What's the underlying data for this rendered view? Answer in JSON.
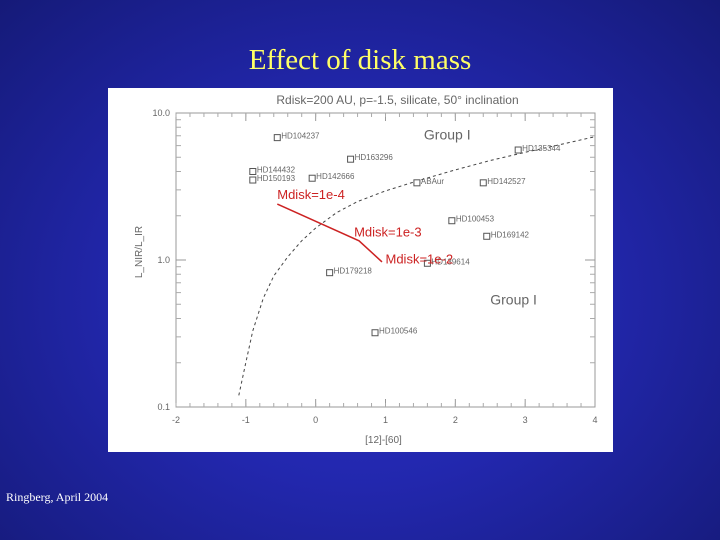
{
  "slide": {
    "title": "Effect of disk mass",
    "footer": "Ringberg, April 2004"
  },
  "chart_data": {
    "type": "scatter",
    "title": "Rdisk=200 AU, p=-1.5, silicate, 50° inclination",
    "xlabel": "[12]-[60]",
    "ylabel": "L_NIR/L_IR",
    "xlim": [
      -2,
      4
    ],
    "ylim": [
      0.1,
      10
    ],
    "yscale": "log",
    "x_tick_labels": [
      "-2",
      "-1",
      "0",
      "1",
      "2",
      "3",
      "4"
    ],
    "y_tick_labels": [
      "0.1",
      "1.0",
      "10.0"
    ],
    "stars": [
      {
        "name": "HD104237",
        "x": -0.55,
        "y": 6.8
      },
      {
        "name": "HD163296",
        "x": 0.5,
        "y": 4.85
      },
      {
        "name": "HD135344",
        "x": 2.9,
        "y": 5.6
      },
      {
        "name": "HD144432",
        "x": -0.9,
        "y": 4.0
      },
      {
        "name": "HD150193",
        "x": -0.9,
        "y": 3.5
      },
      {
        "name": "HD142666",
        "x": -0.05,
        "y": 3.6
      },
      {
        "name": "HD142527",
        "x": 2.4,
        "y": 3.35
      },
      {
        "name": "ABAur",
        "x": 1.45,
        "y": 3.35
      },
      {
        "name": "HD100453",
        "x": 1.95,
        "y": 1.85
      },
      {
        "name": "HD169142",
        "x": 2.45,
        "y": 1.45
      },
      {
        "name": "HD139614",
        "x": 1.6,
        "y": 0.95
      },
      {
        "name": "HD179218",
        "x": 0.2,
        "y": 0.82
      },
      {
        "name": "HD100546",
        "x": 0.85,
        "y": 0.32
      }
    ],
    "boundary_curve": {
      "label": "",
      "x": [
        -1.1,
        -1.0,
        -0.9,
        -0.75,
        -0.6,
        -0.4,
        -0.2,
        0.0,
        0.3,
        0.6,
        1.0,
        1.5,
        2.0,
        2.5,
        3.0,
        3.5,
        4.0
      ],
      "y": [
        0.12,
        0.2,
        0.33,
        0.55,
        0.78,
        1.05,
        1.35,
        1.65,
        2.1,
        2.5,
        2.95,
        3.5,
        4.1,
        4.75,
        5.4,
        6.1,
        6.9
      ]
    },
    "model_track": {
      "x": [
        -0.55,
        0.62,
        0.95
      ],
      "y": [
        2.4,
        1.35,
        0.97
      ]
    },
    "annotations": [
      {
        "text": "Mdisk=1e-4",
        "x": -0.55,
        "y": 2.6
      },
      {
        "text": "Mdisk=1e-3",
        "x": 0.55,
        "y": 1.45
      },
      {
        "text": "Mdisk=1e-2",
        "x": 1.0,
        "y": 0.95
      }
    ],
    "region_labels": [
      {
        "text": "Group  I",
        "x": 1.55,
        "y": 6.6
      },
      {
        "text": "Group  I",
        "x": 2.5,
        "y": 0.5
      }
    ]
  }
}
